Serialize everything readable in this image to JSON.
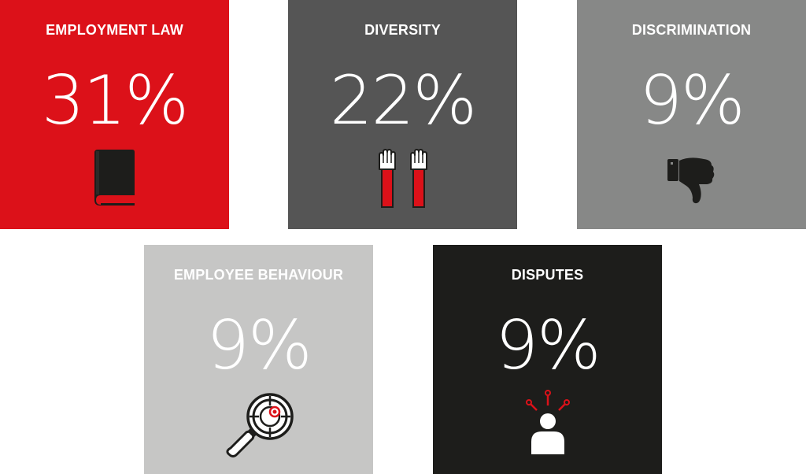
{
  "tiles": [
    {
      "label": "EMPLOYMENT LAW",
      "value": "31%",
      "icon": "book-icon",
      "bg": "#dc1119"
    },
    {
      "label": "DIVERSITY",
      "value": "22%",
      "icon": "raised-hands-icon",
      "bg": "#555555"
    },
    {
      "label": "DISCRIMINATION",
      "value": "9%",
      "icon": "thumbs-down-icon",
      "bg": "#878887"
    },
    {
      "label": "EMPLOYEE BEHAVIOUR",
      "value": "9%",
      "icon": "magnifier-target-icon",
      "bg": "#c6c6c5"
    },
    {
      "label": "DISPUTES",
      "value": "9%",
      "icon": "person-alert-icon",
      "bg": "#1d1d1b"
    }
  ],
  "colors": {
    "accent_red": "#dc1119",
    "dark": "#1d1d1b",
    "white": "#ffffff"
  }
}
